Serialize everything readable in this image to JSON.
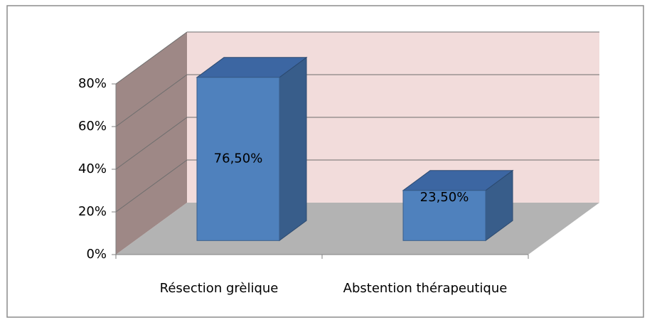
{
  "chart_data": {
    "type": "bar3d",
    "categories": [
      "Résection grèlique",
      "Abstention thérapeutique"
    ],
    "values": [
      76.5,
      23.5
    ],
    "value_labels": [
      "76,50%",
      "23,50%"
    ],
    "color": "#4f81bd",
    "ylim": [
      0,
      80
    ],
    "yticks": [
      {
        "value": 0,
        "label": "0%"
      },
      {
        "value": 20,
        "label": "20%"
      },
      {
        "value": 40,
        "label": "40%"
      },
      {
        "value": 60,
        "label": "60%"
      },
      {
        "value": 80,
        "label": "80%"
      }
    ],
    "grid": true
  }
}
